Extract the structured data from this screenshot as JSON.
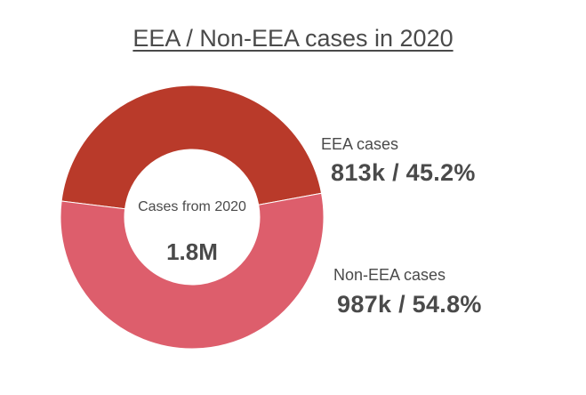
{
  "chart_data": {
    "type": "pie",
    "title": "EEA / Non-EEA cases in 2020",
    "center": {
      "label": "Cases from 2020",
      "value": "1.8M"
    },
    "categories": [
      "EEA cases",
      "Non-EEA cases"
    ],
    "values": [
      813,
      987
    ],
    "value_labels": [
      "813k / 45.2%",
      "987k / 54.8%"
    ],
    "colors": [
      "#b93a2a",
      "#dd5e6c"
    ],
    "donut": true,
    "legend": "right"
  }
}
